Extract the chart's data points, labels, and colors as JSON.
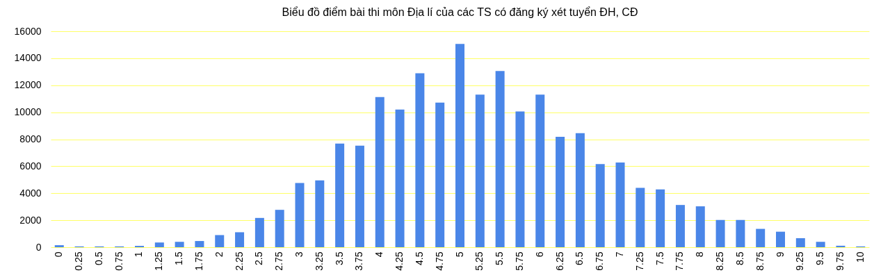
{
  "chart_data": {
    "type": "bar",
    "title": "Biểu đồ điểm bài thi môn Địa lí của các TS có đăng ký xét tuyển ĐH, CĐ",
    "categories": [
      "0",
      "0.25",
      "0.5",
      "0.75",
      "1",
      "1.25",
      "1.5",
      "1.75",
      "2",
      "2.25",
      "2.5",
      "2.75",
      "3",
      "3.25",
      "3.5",
      "3.75",
      "4",
      "4.25",
      "4.5",
      "4.75",
      "5",
      "5.25",
      "5.5",
      "5.75",
      "6",
      "6.25",
      "6.5",
      "6.75",
      "7",
      "7.25",
      "7.5",
      "7.75",
      "8",
      "8.25",
      "8.5",
      "8.75",
      "9",
      "9.25",
      "9.5",
      "9.75",
      "10"
    ],
    "values": [
      150,
      60,
      60,
      60,
      100,
      350,
      400,
      460,
      900,
      1110,
      2170,
      2770,
      4760,
      4950,
      7680,
      7530,
      11120,
      10200,
      12890,
      10720,
      15060,
      11310,
      13060,
      10060,
      11310,
      8180,
      8450,
      6160,
      6280,
      4400,
      4280,
      3130,
      3030,
      2020,
      2020,
      1360,
      1150,
      670,
      400,
      110,
      60
    ],
    "color": "#4a86e8",
    "ylim": [
      0,
      16000
    ],
    "yticks": [
      0,
      2000,
      4000,
      6000,
      8000,
      10000,
      12000,
      14000,
      16000
    ],
    "grid": "y"
  }
}
